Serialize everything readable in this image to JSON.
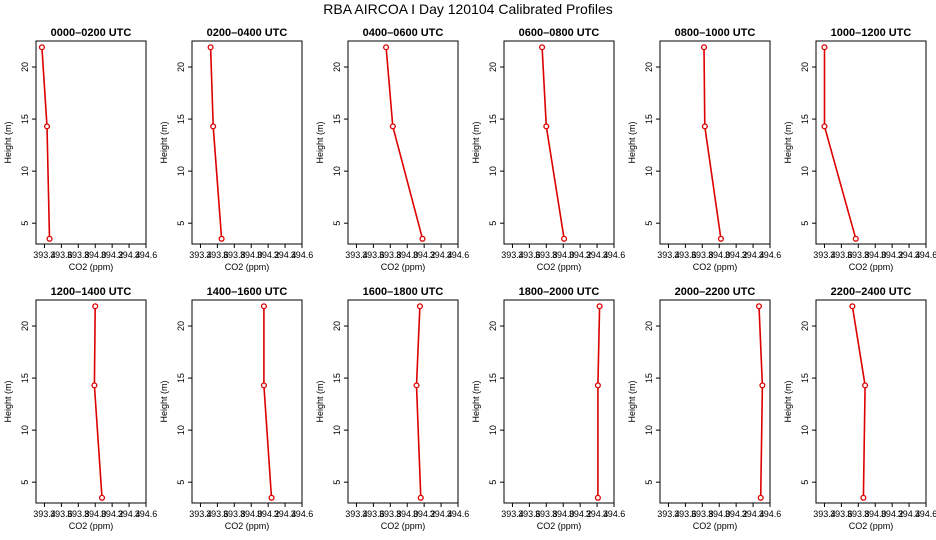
{
  "page": {
    "title": "RBA AIRCOA I  Day 120104  Calibrated Profiles"
  },
  "style": {
    "line_color": "#dd0000",
    "axis_color": "#000000",
    "background": "#ffffff"
  },
  "chart_data": [
    {
      "type": "line",
      "title": "0000–0200 UTC",
      "xlabel": "CO2 (ppm)",
      "ylabel": "Height (m)",
      "xlim": [
        393.3,
        394.6
      ],
      "ylim": [
        3,
        22.5
      ],
      "xticks": [
        "393.4",
        "393.6",
        "393.8",
        "394.0",
        "394.2",
        "394.4",
        "394.6"
      ],
      "xtick_values": [
        393.4,
        393.6,
        393.8,
        394.0,
        394.2,
        394.4,
        394.6
      ],
      "yticks": [
        "5",
        "10",
        "15",
        "20"
      ],
      "ytick_values": [
        5,
        10,
        15,
        20
      ],
      "x": [
        393.46,
        393.43,
        393.37
      ],
      "y": [
        3.5,
        14.3,
        21.9
      ]
    },
    {
      "type": "line",
      "title": "0200–0400 UTC",
      "xlabel": "CO2 (ppm)",
      "ylabel": "Height (m)",
      "xlim": [
        393.3,
        394.6
      ],
      "ylim": [
        3,
        22.5
      ],
      "xticks": [
        "393.4",
        "393.6",
        "393.8",
        "394.0",
        "394.2",
        "394.4",
        "394.6"
      ],
      "xtick_values": [
        393.4,
        393.6,
        393.8,
        394.0,
        394.2,
        394.4,
        394.6
      ],
      "yticks": [
        "5",
        "10",
        "15",
        "20"
      ],
      "ytick_values": [
        5,
        10,
        15,
        20
      ],
      "x": [
        393.65,
        393.55,
        393.52
      ],
      "y": [
        3.5,
        14.3,
        21.9
      ]
    },
    {
      "type": "line",
      "title": "0400–0600 UTC",
      "xlabel": "CO2 (ppm)",
      "ylabel": "Height (m)",
      "xlim": [
        393.3,
        394.6
      ],
      "ylim": [
        3,
        22.5
      ],
      "xticks": [
        "393.4",
        "393.6",
        "393.8",
        "394.0",
        "394.2",
        "394.4",
        "394.6"
      ],
      "xtick_values": [
        393.4,
        393.6,
        393.8,
        394.0,
        394.2,
        394.4,
        394.6
      ],
      "yticks": [
        "5",
        "10",
        "15",
        "20"
      ],
      "ytick_values": [
        5,
        10,
        15,
        20
      ],
      "x": [
        394.18,
        393.83,
        393.75
      ],
      "y": [
        3.5,
        14.3,
        21.9
      ]
    },
    {
      "type": "line",
      "title": "0600–0800 UTC",
      "xlabel": "CO2 (ppm)",
      "ylabel": "Height (m)",
      "xlim": [
        393.3,
        394.6
      ],
      "ylim": [
        3,
        22.5
      ],
      "xticks": [
        "393.4",
        "393.6",
        "393.8",
        "394.0",
        "394.2",
        "394.4",
        "394.6"
      ],
      "xtick_values": [
        393.4,
        393.6,
        393.8,
        394.0,
        394.2,
        394.4,
        394.6
      ],
      "yticks": [
        "5",
        "10",
        "15",
        "20"
      ],
      "ytick_values": [
        5,
        10,
        15,
        20
      ],
      "x": [
        394.01,
        393.8,
        393.75
      ],
      "y": [
        3.5,
        14.3,
        21.9
      ]
    },
    {
      "type": "line",
      "title": "0800–1000 UTC",
      "xlabel": "CO2 (ppm)",
      "ylabel": "Height (m)",
      "xlim": [
        393.3,
        394.6
      ],
      "ylim": [
        3,
        22.5
      ],
      "xticks": [
        "393.4",
        "393.6",
        "393.8",
        "394.0",
        "394.2",
        "394.4",
        "394.6"
      ],
      "xtick_values": [
        393.4,
        393.6,
        393.8,
        394.0,
        394.2,
        394.4,
        394.6
      ],
      "yticks": [
        "5",
        "10",
        "15",
        "20"
      ],
      "ytick_values": [
        5,
        10,
        15,
        20
      ],
      "x": [
        394.02,
        393.83,
        393.82
      ],
      "y": [
        3.5,
        14.3,
        21.9
      ]
    },
    {
      "type": "line",
      "title": "1000–1200 UTC",
      "xlabel": "CO2 (ppm)",
      "ylabel": "Height (m)",
      "xlim": [
        393.3,
        394.6
      ],
      "ylim": [
        3,
        22.5
      ],
      "xticks": [
        "393.4",
        "393.6",
        "393.8",
        "394.0",
        "394.2",
        "394.4",
        "394.6"
      ],
      "xtick_values": [
        393.4,
        393.6,
        393.8,
        394.0,
        394.2,
        394.4,
        394.6
      ],
      "yticks": [
        "5",
        "10",
        "15",
        "20"
      ],
      "ytick_values": [
        5,
        10,
        15,
        20
      ],
      "x": [
        393.77,
        393.4,
        393.4
      ],
      "y": [
        3.5,
        14.3,
        21.9
      ]
    },
    {
      "type": "line",
      "title": "1200–1400 UTC",
      "xlabel": "CO2 (ppm)",
      "ylabel": "Height (m)",
      "xlim": [
        393.3,
        394.6
      ],
      "ylim": [
        3,
        22.5
      ],
      "xticks": [
        "393.4",
        "393.6",
        "393.8",
        "394.0",
        "394.2",
        "394.4",
        "394.6"
      ],
      "xtick_values": [
        393.4,
        393.6,
        393.8,
        394.0,
        394.2,
        394.4,
        394.6
      ],
      "yticks": [
        "5",
        "10",
        "15",
        "20"
      ],
      "ytick_values": [
        5,
        10,
        15,
        20
      ],
      "x": [
        394.08,
        393.99,
        394.0
      ],
      "y": [
        3.5,
        14.3,
        21.9
      ]
    },
    {
      "type": "line",
      "title": "1400–1600 UTC",
      "xlabel": "CO2 (ppm)",
      "ylabel": "Height (m)",
      "xlim": [
        393.3,
        394.6
      ],
      "ylim": [
        3,
        22.5
      ],
      "xticks": [
        "393.4",
        "393.6",
        "393.8",
        "394.0",
        "394.2",
        "394.4",
        "394.6"
      ],
      "xtick_values": [
        393.4,
        393.6,
        393.8,
        394.0,
        394.2,
        394.4,
        394.6
      ],
      "yticks": [
        "5",
        "10",
        "15",
        "20"
      ],
      "ytick_values": [
        5,
        10,
        15,
        20
      ],
      "x": [
        394.24,
        394.15,
        394.15
      ],
      "y": [
        3.5,
        14.3,
        21.9
      ]
    },
    {
      "type": "line",
      "title": "1600–1800 UTC",
      "xlabel": "CO2 (ppm)",
      "ylabel": "Height (m)",
      "xlim": [
        393.3,
        394.6
      ],
      "ylim": [
        3,
        22.5
      ],
      "xticks": [
        "393.4",
        "393.6",
        "393.8",
        "394.0",
        "394.2",
        "394.4",
        "394.6"
      ],
      "xtick_values": [
        393.4,
        393.6,
        393.8,
        394.0,
        394.2,
        394.4,
        394.6
      ],
      "yticks": [
        "5",
        "10",
        "15",
        "20"
      ],
      "ytick_values": [
        5,
        10,
        15,
        20
      ],
      "x": [
        394.16,
        394.11,
        394.15
      ],
      "y": [
        3.5,
        14.3,
        21.9
      ]
    },
    {
      "type": "line",
      "title": "1800–2000 UTC",
      "xlabel": "CO2 (ppm)",
      "ylabel": "Height (m)",
      "xlim": [
        393.3,
        394.6
      ],
      "ylim": [
        3,
        22.5
      ],
      "xticks": [
        "393.4",
        "393.6",
        "393.8",
        "394.0",
        "394.2",
        "394.4",
        "394.6"
      ],
      "xtick_values": [
        393.4,
        393.6,
        393.8,
        394.0,
        394.2,
        394.4,
        394.6
      ],
      "yticks": [
        "5",
        "10",
        "15",
        "20"
      ],
      "ytick_values": [
        5,
        10,
        15,
        20
      ],
      "x": [
        394.41,
        394.41,
        394.43
      ],
      "y": [
        3.5,
        14.3,
        21.9
      ]
    },
    {
      "type": "line",
      "title": "2000–2200 UTC",
      "xlabel": "CO2 (ppm)",
      "ylabel": "Height (m)",
      "xlim": [
        393.3,
        394.6
      ],
      "ylim": [
        3,
        22.5
      ],
      "xticks": [
        "393.4",
        "393.6",
        "393.8",
        "394.0",
        "394.2",
        "394.4",
        "394.6"
      ],
      "xtick_values": [
        393.4,
        393.6,
        393.8,
        394.0,
        394.2,
        394.4,
        394.6
      ],
      "yticks": [
        "5",
        "10",
        "15",
        "20"
      ],
      "ytick_values": [
        5,
        10,
        15,
        20
      ],
      "x": [
        394.49,
        394.51,
        394.47
      ],
      "y": [
        3.5,
        14.3,
        21.9
      ]
    },
    {
      "type": "line",
      "title": "2200–2400 UTC",
      "xlabel": "CO2 (ppm)",
      "ylabel": "Height (m)",
      "xlim": [
        393.3,
        394.6
      ],
      "ylim": [
        3,
        22.5
      ],
      "xticks": [
        "393.4",
        "393.6",
        "393.8",
        "394.0",
        "394.2",
        "394.4",
        "394.6"
      ],
      "xtick_values": [
        393.4,
        393.6,
        393.8,
        394.0,
        394.2,
        394.4,
        394.6
      ],
      "yticks": [
        "5",
        "10",
        "15",
        "20"
      ],
      "ytick_values": [
        5,
        10,
        15,
        20
      ],
      "x": [
        393.86,
        393.88,
        393.73
      ],
      "y": [
        3.5,
        14.3,
        21.9
      ]
    }
  ]
}
